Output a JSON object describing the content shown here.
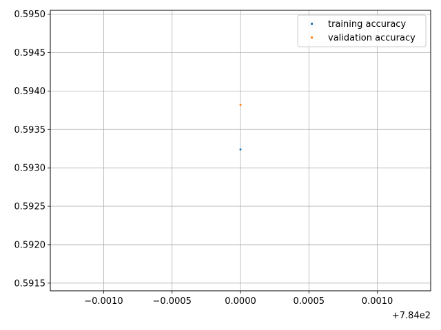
{
  "chart_data": {
    "type": "scatter",
    "title": "",
    "xlabel": "",
    "ylabel": "",
    "x_offset_label": "+7.84e2",
    "xlim": [
      -0.00139,
      0.00139
    ],
    "ylim": [
      0.5914,
      0.59505
    ],
    "x_ticks": [
      {
        "value": -0.001,
        "label": "−0.0010"
      },
      {
        "value": -0.0005,
        "label": "−0.0005"
      },
      {
        "value": 0.0,
        "label": "0.0000"
      },
      {
        "value": 0.0005,
        "label": "0.0005"
      },
      {
        "value": 0.001,
        "label": "0.0010"
      }
    ],
    "y_ticks": [
      {
        "value": 0.5915,
        "label": "0.5915"
      },
      {
        "value": 0.592,
        "label": "0.5920"
      },
      {
        "value": 0.5925,
        "label": "0.5925"
      },
      {
        "value": 0.593,
        "label": "0.5930"
      },
      {
        "value": 0.5935,
        "label": "0.5935"
      },
      {
        "value": 0.594,
        "label": "0.5940"
      },
      {
        "value": 0.5945,
        "label": "0.5945"
      },
      {
        "value": 0.595,
        "label": "0.5950"
      }
    ],
    "grid": true,
    "legend_position": "top-right",
    "series": [
      {
        "name": "training accuracy",
        "color": "#1f77b4",
        "points": [
          {
            "x": 0.0,
            "y": 0.59324
          }
        ]
      },
      {
        "name": "validation accuracy",
        "color": "#ff7f0e",
        "points": [
          {
            "x": 0.0,
            "y": 0.59382
          }
        ]
      }
    ]
  }
}
